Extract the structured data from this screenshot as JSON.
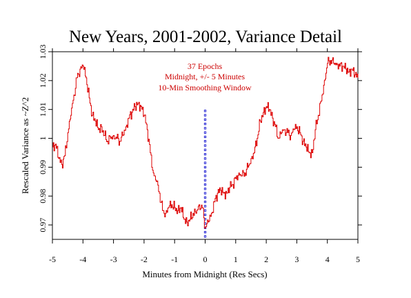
{
  "chart_data": {
    "type": "line",
    "title": "New Years, 2001-2002, Variance Detail",
    "xlabel": "Minutes from Midnight (Res Secs)",
    "ylabel": "Rescaled Variance as ~Z^2",
    "xlim": [
      -5,
      5
    ],
    "ylim": [
      0.965,
      1.03
    ],
    "x_ticks": [
      -5,
      -4,
      -3,
      -2,
      -1,
      0,
      1,
      2,
      3,
      4,
      5
    ],
    "y_ticks": [
      0.97,
      0.98,
      0.99,
      1,
      1.01,
      1.02,
      1.03
    ],
    "y_tick_labels": [
      "0.97",
      "0.98",
      "0.99",
      "1",
      "1.01",
      "1.02",
      "1.03"
    ],
    "annotations": [
      "37 Epochs",
      "Midnight, +/- 5 Minutes",
      "10-Min Smoothing Window"
    ],
    "grid": false,
    "colors": {
      "series": "#dd0000",
      "marker_line": "#0000cc",
      "annotation": "#cc0000"
    },
    "series": [
      {
        "color": "#dd0000",
        "x": [
          -5.0,
          -4.9,
          -4.8,
          -4.7,
          -4.6,
          -4.5,
          -4.4,
          -4.3,
          -4.2,
          -4.1,
          -4.0,
          -3.9,
          -3.8,
          -3.7,
          -3.6,
          -3.5,
          -3.4,
          -3.3,
          -3.2,
          -3.1,
          -3.0,
          -2.9,
          -2.8,
          -2.7,
          -2.6,
          -2.5,
          -2.4,
          -2.3,
          -2.2,
          -2.1,
          -2.0,
          -1.9,
          -1.8,
          -1.7,
          -1.6,
          -1.5,
          -1.4,
          -1.3,
          -1.2,
          -1.1,
          -1.0,
          -0.9,
          -0.8,
          -0.7,
          -0.6,
          -0.5,
          -0.4,
          -0.3,
          -0.2,
          -0.1,
          0.0,
          0.1,
          0.2,
          0.3,
          0.4,
          0.5,
          0.6,
          0.7,
          0.8,
          0.9,
          1.0,
          1.1,
          1.2,
          1.3,
          1.4,
          1.5,
          1.6,
          1.7,
          1.8,
          1.9,
          2.0,
          2.1,
          2.2,
          2.3,
          2.4,
          2.5,
          2.6,
          2.7,
          2.8,
          2.9,
          3.0,
          3.1,
          3.2,
          3.3,
          3.4,
          3.5,
          3.6,
          3.7,
          3.8,
          3.9,
          4.0,
          4.1,
          4.2,
          4.3,
          4.4,
          4.5,
          4.6,
          4.7,
          4.8,
          4.9,
          5.0
        ],
        "values": [
          0.997,
          0.998,
          0.993,
          0.991,
          0.994,
          1.002,
          1.008,
          1.015,
          1.021,
          1.024,
          1.025,
          1.021,
          1.014,
          1.008,
          1.006,
          1.003,
          1.004,
          1.001,
          0.999,
          1.0,
          1.001,
          1.0,
          0.999,
          1.001,
          1.004,
          1.007,
          1.009,
          1.011,
          1.012,
          1.011,
          1.008,
          1.003,
          0.995,
          0.988,
          0.985,
          0.981,
          0.975,
          0.974,
          0.976,
          0.977,
          0.976,
          0.975,
          0.976,
          0.972,
          0.971,
          0.972,
          0.974,
          0.974,
          0.977,
          0.976,
          0.969,
          0.971,
          0.974,
          0.978,
          0.981,
          0.982,
          0.981,
          0.981,
          0.983,
          0.984,
          0.986,
          0.988,
          0.987,
          0.988,
          0.99,
          0.993,
          0.995,
          1.0,
          1.006,
          1.009,
          1.011,
          1.01,
          1.007,
          1.004,
          1.0,
          1.002,
          1.003,
          1.002,
          1.001,
          1.003,
          1.004,
          1.002,
          0.999,
          0.997,
          0.995,
          0.995,
          1.003,
          1.008,
          1.013,
          1.02,
          1.026,
          1.027,
          1.026,
          1.026,
          1.025,
          1.025,
          1.024,
          1.023,
          1.024,
          1.022,
          1.021
        ]
      }
    ],
    "vertical_marker_x": 0
  }
}
